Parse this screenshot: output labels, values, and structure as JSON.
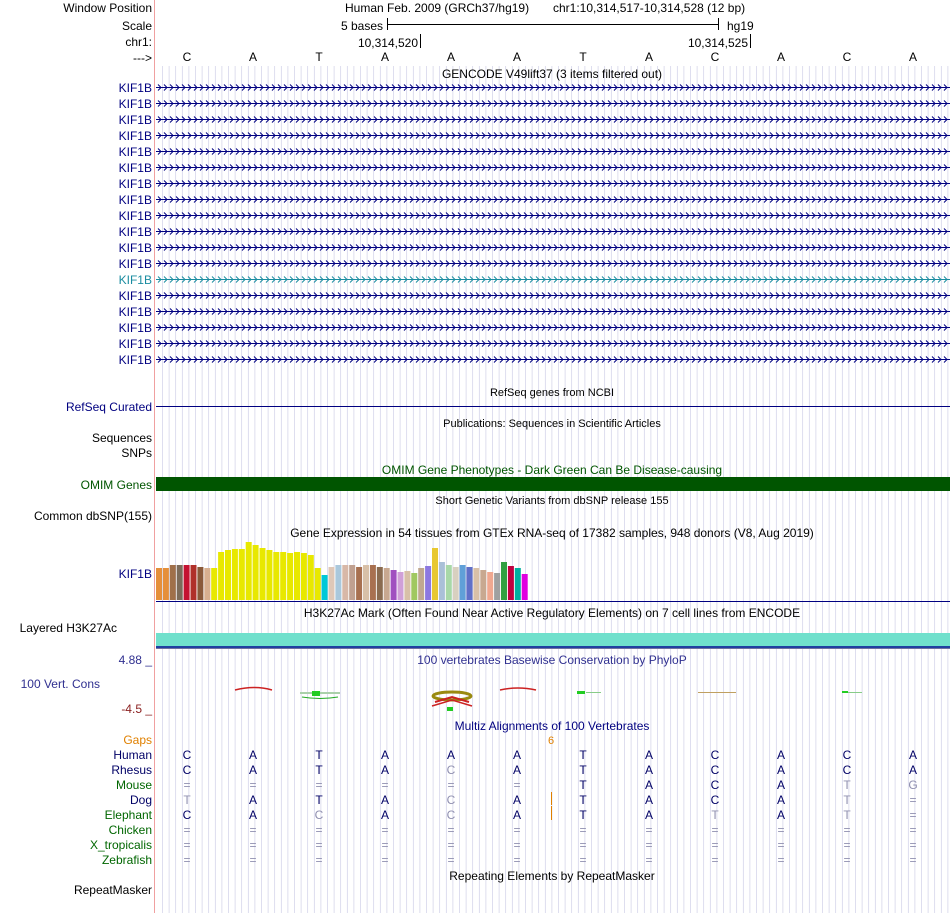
{
  "header": {
    "window_position_label": "Window Position",
    "scale_label": "Scale",
    "chrom_label": "chr1:",
    "strand_label": "--->",
    "assembly": "Human Feb. 2009 (GRCh37/hg19)",
    "position": "chr1:10,314,517-10,314,528 (12 bp)",
    "scale_text": "5 bases",
    "db": "hg19",
    "coord_1": "10,314,520",
    "coord_2": "10,314,525"
  },
  "bases": [
    "C",
    "A",
    "T",
    "A",
    "A",
    "A",
    "T",
    "A",
    "C",
    "A",
    "C",
    "A"
  ],
  "gencode": {
    "title": "GENCODE V49lift37 (3 items filtered out)",
    "gene_labels": [
      "KIF1B",
      "KIF1B",
      "KIF1B",
      "KIF1B",
      "KIF1B",
      "KIF1B",
      "KIF1B",
      "KIF1B",
      "KIF1B",
      "KIF1B",
      "KIF1B",
      "KIF1B",
      "KIF1B",
      "KIF1B",
      "KIF1B",
      "KIF1B",
      "KIF1B",
      "KIF1B"
    ],
    "highlight_index": 12
  },
  "refseq": {
    "title": "RefSeq genes from NCBI",
    "label": "RefSeq Curated"
  },
  "publications": {
    "title": "Publications: Sequences in Scientific Articles",
    "label_sequences": "Sequences",
    "label_snps": "SNPs"
  },
  "omim": {
    "title": "OMIM Gene Phenotypes - Dark Green Can Be Disease-causing",
    "label": "OMIM Genes"
  },
  "dbsnp": {
    "title": "Short Genetic Variants from dbSNP release 155",
    "label": "Common dbSNP(155)"
  },
  "gtex": {
    "title": "Gene Expression in 54 tissues from GTEx RNA-seq of 17382 samples, 948 donors (V8, Aug 2019)",
    "label": "KIF1B",
    "bar_values": [
      32,
      32,
      35,
      35,
      35,
      35,
      33,
      32,
      32,
      48,
      50,
      51,
      51,
      58,
      55,
      52,
      50,
      48,
      48,
      47,
      48,
      47,
      45,
      32,
      25,
      33,
      35,
      35,
      35,
      33,
      35,
      35,
      33,
      32,
      30,
      28,
      29,
      27,
      32,
      34,
      52,
      38,
      35,
      33,
      35,
      33,
      32,
      30,
      28,
      27,
      38,
      34,
      32,
      26
    ],
    "bar_colors": [
      "#e58f3a",
      "#e58f3a",
      "#a0704a",
      "#7c6b5a",
      "#c41232",
      "#b0302a",
      "#8a5a3a",
      "#d8b090",
      "#e8e800",
      "#e8e800",
      "#e8e800",
      "#e8e800",
      "#e8e800",
      "#e8e800",
      "#e8e800",
      "#e8e800",
      "#e8e800",
      "#e8e800",
      "#e8e800",
      "#e8e800",
      "#e8e800",
      "#e8e800",
      "#e8e800",
      "#e8e800",
      "#00c8d8",
      "#dfc8b8",
      "#aac8dc",
      "#d8b8a8",
      "#c0a090",
      "#a87050",
      "#d8c0a8",
      "#a87050",
      "#8a6b50",
      "#c8a890",
      "#a050c0",
      "#d0a0d8",
      "#d8c0a8",
      "#a0c860",
      "#c0a890",
      "#8c78e0",
      "#e8c830",
      "#aac0d8",
      "#a8d8a8",
      "#d8d0c0",
      "#60a0d8",
      "#6070c8",
      "#d8c0a8",
      "#c8a890",
      "#f0a890",
      "#a0a0a0",
      "#30a040",
      "#c00040",
      "#00b0a0",
      "#e000e0"
    ]
  },
  "h3k27ac": {
    "title": "H3K27Ac Mark (Often Found Near Active Regulatory Elements) on 7 cell lines from ENCODE",
    "label": "Layered H3K27Ac"
  },
  "conservation": {
    "title": "100 vertebrates Basewise Conservation by PhyloP",
    "label": "100 Vert. Cons",
    "max": "4.88 _",
    "min": "-4.5 _"
  },
  "multiz": {
    "title": "Multiz Alignments of 100 Vertebrates",
    "gaps_label": "Gaps",
    "gap_count": "6",
    "species": [
      {
        "name": "Human",
        "color": "#000066",
        "bases": [
          "C",
          "A",
          "T",
          "A",
          "A",
          "A",
          "T",
          "A",
          "C",
          "A",
          "C",
          "A"
        ],
        "dim": [
          0,
          0,
          0,
          0,
          0,
          0,
          0,
          0,
          0,
          0,
          0,
          0
        ]
      },
      {
        "name": "Rhesus",
        "color": "#000066",
        "bases": [
          "C",
          "A",
          "T",
          "A",
          "C",
          "A",
          "T",
          "A",
          "C",
          "A",
          "C",
          "A"
        ],
        "dim": [
          0,
          0,
          0,
          0,
          1,
          0,
          0,
          0,
          0,
          0,
          0,
          0
        ]
      },
      {
        "name": "Mouse",
        "color": "#006600",
        "bases": [
          "=",
          "=",
          "=",
          "=",
          "=",
          "=",
          "T",
          "A",
          "C",
          "A",
          "T",
          "G"
        ],
        "dim": [
          1,
          1,
          1,
          1,
          1,
          1,
          0,
          0,
          0,
          0,
          1,
          1
        ]
      },
      {
        "name": "Dog",
        "color": "#000066",
        "bases": [
          "T",
          "A",
          "T",
          "A",
          "C",
          "A",
          "T",
          "A",
          "C",
          "A",
          "T",
          "="
        ],
        "dim": [
          1,
          0,
          0,
          0,
          1,
          0,
          0,
          0,
          0,
          0,
          1,
          1
        ]
      },
      {
        "name": "Elephant",
        "color": "#006600",
        "bases": [
          "C",
          "A",
          "C",
          "A",
          "C",
          "A",
          "T",
          "A",
          "T",
          "A",
          "T",
          "="
        ],
        "dim": [
          0,
          0,
          1,
          0,
          1,
          0,
          0,
          0,
          1,
          0,
          1,
          1
        ]
      },
      {
        "name": "Chicken",
        "color": "#006600",
        "bases": [
          "=",
          "=",
          "=",
          "=",
          "=",
          "=",
          "=",
          "=",
          "=",
          "=",
          "=",
          "="
        ],
        "dim": [
          1,
          1,
          1,
          1,
          1,
          1,
          1,
          1,
          1,
          1,
          1,
          1
        ]
      },
      {
        "name": "X_tropicalis",
        "color": "#006600",
        "bases": [
          "=",
          "=",
          "=",
          "=",
          "=",
          "=",
          "=",
          "=",
          "=",
          "=",
          "=",
          "="
        ],
        "dim": [
          1,
          1,
          1,
          1,
          1,
          1,
          1,
          1,
          1,
          1,
          1,
          1
        ]
      },
      {
        "name": "Zebrafish",
        "color": "#006600",
        "bases": [
          "=",
          "=",
          "=",
          "=",
          "=",
          "=",
          "=",
          "=",
          "=",
          "=",
          "=",
          "="
        ],
        "dim": [
          1,
          1,
          1,
          1,
          1,
          1,
          1,
          1,
          1,
          1,
          1,
          1
        ]
      }
    ]
  },
  "repeatmasker": {
    "title": "Repeating Elements by RepeatMasker",
    "label": "RepeatMasker"
  },
  "colors": {
    "gene": "#000080",
    "gene_highlight": "#1a8ca0",
    "omim": "#005500",
    "h3k27ac": "#70e0cc",
    "gridline": "#d0d0e8",
    "conservation_pos": "#cc2222",
    "conservation_neg": "#22aa22"
  }
}
